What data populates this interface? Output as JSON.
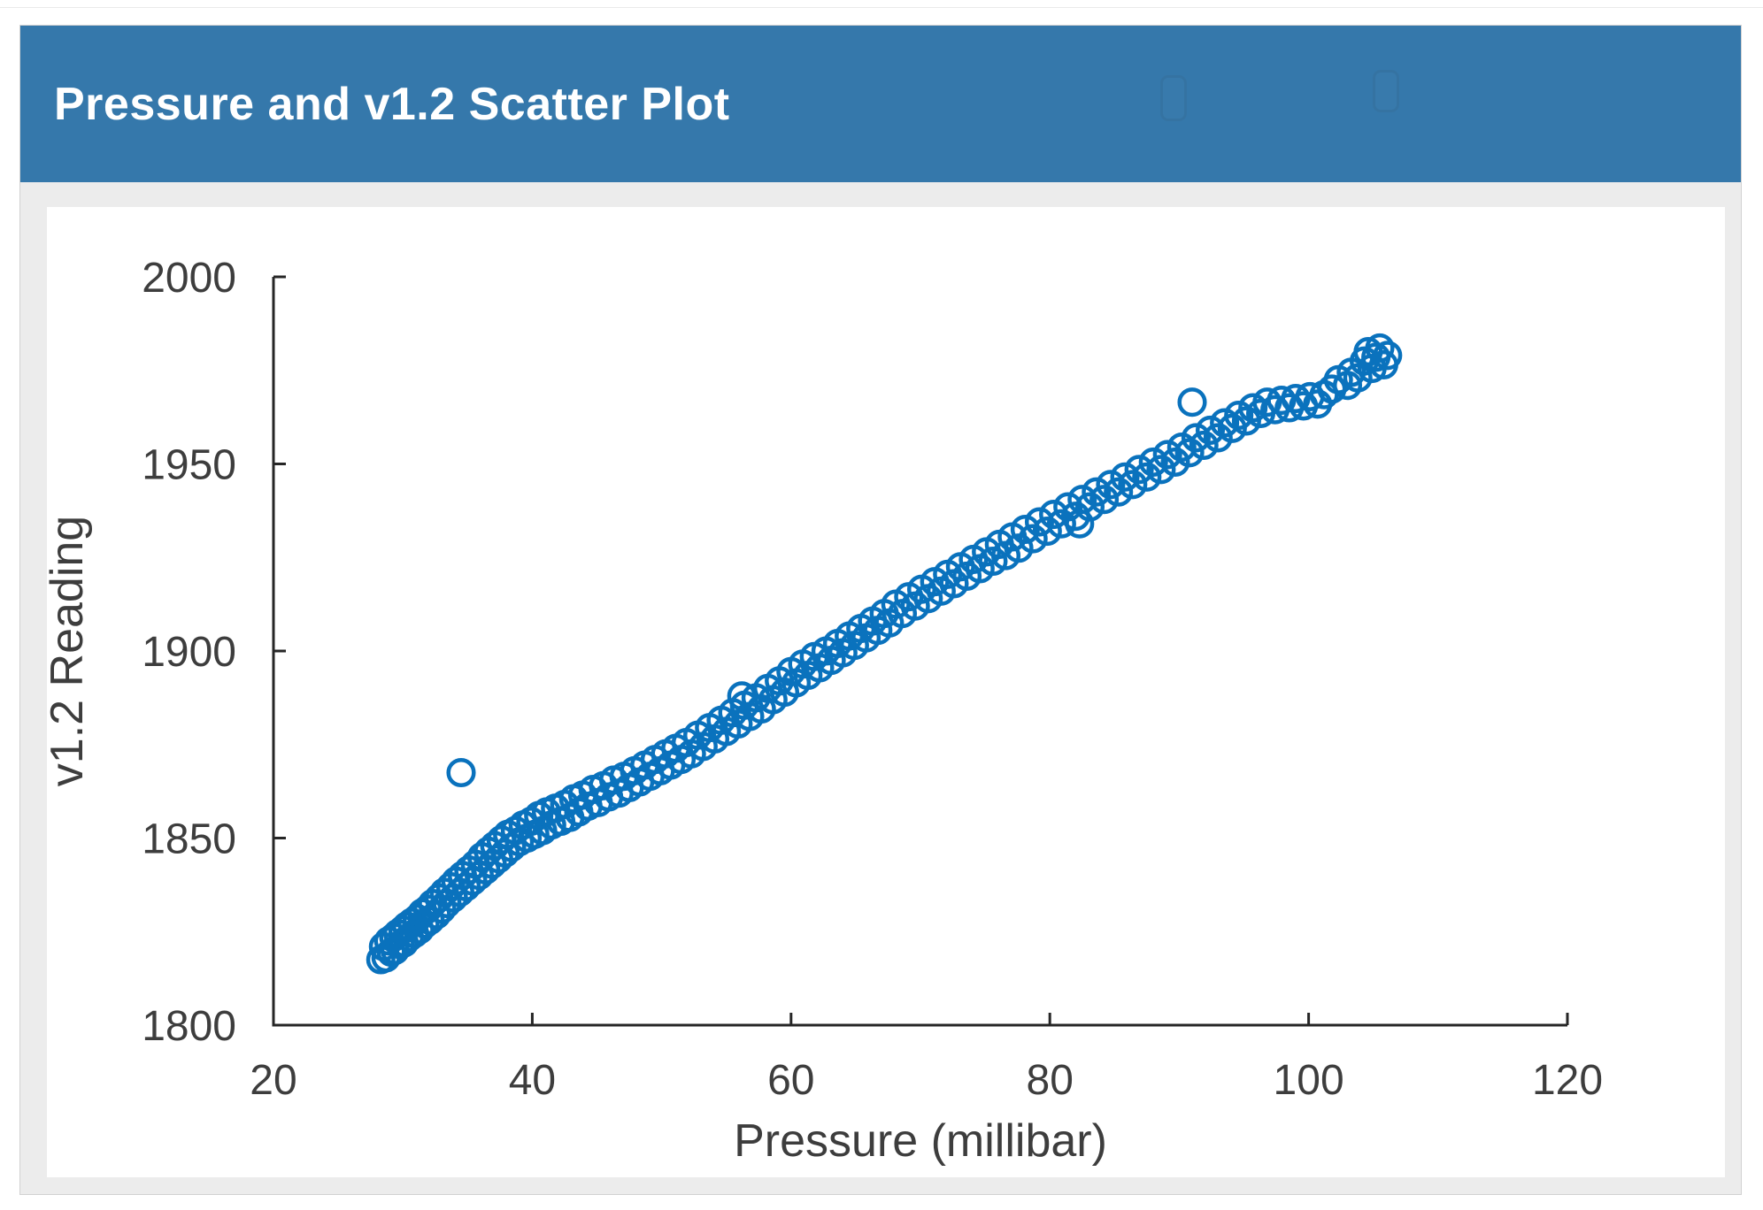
{
  "header": {
    "title": "Pressure and v1.2 Scatter Plot"
  },
  "colors": {
    "header_bg": "#3578ab",
    "header_text": "#ffffff",
    "body_bg": "#ececec",
    "card_bg": "#ffffff",
    "panel_border": "#d2d2d2",
    "axis": "#262626",
    "tick_text": "#3d3d3d",
    "marker": "#0a72bd"
  },
  "chart_data": {
    "type": "scatter",
    "title": "Pressure and v1.2 Scatter Plot",
    "xlabel": "Pressure (millibar)",
    "ylabel": "v1.2 Reading",
    "xlim": [
      20,
      120
    ],
    "ylim": [
      1800,
      2000
    ],
    "xticks": [
      20,
      40,
      60,
      80,
      100,
      120
    ],
    "yticks": [
      1800,
      1850,
      1900,
      1950,
      2000
    ],
    "grid": false,
    "legend": null,
    "marker_style": "open-circle",
    "notes": "rising band with outlier at (34.5,1867.5), high point (91,1966.5), plateau 96-101, top cluster 104-106",
    "points": [
      [
        28.3,
        1817.5
      ],
      [
        28.5,
        1821
      ],
      [
        28.7,
        1818
      ],
      [
        28.9,
        1822.5
      ],
      [
        29.1,
        1819.5
      ],
      [
        29.3,
        1823.5
      ],
      [
        29.4,
        1820
      ],
      [
        29.6,
        1824.5
      ],
      [
        29.8,
        1821.5
      ],
      [
        30,
        1825.5
      ],
      [
        30.1,
        1822
      ],
      [
        30.3,
        1826.5
      ],
      [
        30.5,
        1823.5
      ],
      [
        30.7,
        1827.5
      ],
      [
        30.9,
        1824.5
      ],
      [
        31.1,
        1828.5
      ],
      [
        31.3,
        1825.5
      ],
      [
        31.5,
        1830
      ],
      [
        31.7,
        1827
      ],
      [
        31.9,
        1831
      ],
      [
        32.1,
        1828
      ],
      [
        32.3,
        1832.5
      ],
      [
        32.6,
        1829.5
      ],
      [
        32.8,
        1834
      ],
      [
        33,
        1831
      ],
      [
        33.2,
        1835.5
      ],
      [
        33.4,
        1832.5
      ],
      [
        33.7,
        1837
      ],
      [
        33.9,
        1834
      ],
      [
        34.1,
        1838.5
      ],
      [
        34.4,
        1835.5
      ],
      [
        34.5,
        1867.5
      ],
      [
        34.6,
        1840
      ],
      [
        34.9,
        1837
      ],
      [
        35.1,
        1841.5
      ],
      [
        35.4,
        1838.5
      ],
      [
        35.6,
        1843
      ],
      [
        35.9,
        1840
      ],
      [
        36.1,
        1845
      ],
      [
        36.4,
        1841.5
      ],
      [
        36.6,
        1846.5
      ],
      [
        36.9,
        1843
      ],
      [
        37.1,
        1848
      ],
      [
        37.4,
        1844.5
      ],
      [
        37.6,
        1849.5
      ],
      [
        37.9,
        1846
      ],
      [
        38.1,
        1851
      ],
      [
        38.4,
        1847.5
      ],
      [
        38.7,
        1852
      ],
      [
        39,
        1849
      ],
      [
        39.3,
        1853.5
      ],
      [
        39.6,
        1850
      ],
      [
        39.9,
        1854.5
      ],
      [
        40.2,
        1851
      ],
      [
        40.5,
        1856
      ],
      [
        40.8,
        1852
      ],
      [
        41.1,
        1857
      ],
      [
        41.5,
        1853.5
      ],
      [
        41.8,
        1858
      ],
      [
        42.2,
        1854.5
      ],
      [
        42.5,
        1859
      ],
      [
        42.9,
        1855.5
      ],
      [
        43.2,
        1860.5
      ],
      [
        43.6,
        1857
      ],
      [
        43.9,
        1861.5
      ],
      [
        44.3,
        1858.5
      ],
      [
        44.7,
        1863
      ],
      [
        45.1,
        1859.5
      ],
      [
        45.5,
        1864
      ],
      [
        45.9,
        1861
      ],
      [
        46.3,
        1865.5
      ],
      [
        46.7,
        1862
      ],
      [
        47.1,
        1866.5
      ],
      [
        47.5,
        1863.5
      ],
      [
        47.9,
        1868
      ],
      [
        48.3,
        1865
      ],
      [
        48.7,
        1869.5
      ],
      [
        49.1,
        1866.5
      ],
      [
        49.5,
        1871
      ],
      [
        49.9,
        1868
      ],
      [
        50.3,
        1872.5
      ],
      [
        50.7,
        1869.5
      ],
      [
        51.1,
        1874
      ],
      [
        51.5,
        1871
      ],
      [
        51.9,
        1875.5
      ],
      [
        52.3,
        1872.5
      ],
      [
        52.8,
        1877.5
      ],
      [
        53.2,
        1874.5
      ],
      [
        53.7,
        1879.5
      ],
      [
        54.1,
        1876.5
      ],
      [
        54.6,
        1881.5
      ],
      [
        55,
        1878.5
      ],
      [
        55.5,
        1883.5
      ],
      [
        55.9,
        1880.5
      ],
      [
        56.2,
        1888
      ],
      [
        56.4,
        1885.5
      ],
      [
        56.8,
        1882.5
      ],
      [
        57.3,
        1887.5
      ],
      [
        57.7,
        1884.5
      ],
      [
        58.2,
        1890
      ],
      [
        58.6,
        1887
      ],
      [
        59.1,
        1892
      ],
      [
        59.5,
        1889
      ],
      [
        60,
        1894.5
      ],
      [
        60.4,
        1891.5
      ],
      [
        60.9,
        1896.5
      ],
      [
        61.3,
        1893.5
      ],
      [
        61.8,
        1898.5
      ],
      [
        62.2,
        1895.5
      ],
      [
        62.7,
        1900
      ],
      [
        63.1,
        1897.5
      ],
      [
        63.6,
        1902
      ],
      [
        64,
        1899.5
      ],
      [
        64.5,
        1904
      ],
      [
        64.9,
        1901.5
      ],
      [
        65.4,
        1906
      ],
      [
        65.8,
        1903.5
      ],
      [
        66.3,
        1908
      ],
      [
        66.7,
        1905.5
      ],
      [
        67.2,
        1910
      ],
      [
        67.6,
        1907.5
      ],
      [
        68.1,
        1912.5
      ],
      [
        68.6,
        1910
      ],
      [
        69.1,
        1914.5
      ],
      [
        69.6,
        1912
      ],
      [
        70.1,
        1916.5
      ],
      [
        70.6,
        1914
      ],
      [
        71.1,
        1918.5
      ],
      [
        71.6,
        1916
      ],
      [
        72.1,
        1920.5
      ],
      [
        72.6,
        1918
      ],
      [
        73.1,
        1922.5
      ],
      [
        73.6,
        1920
      ],
      [
        74.1,
        1924.5
      ],
      [
        74.6,
        1922
      ],
      [
        75.1,
        1926.5
      ],
      [
        75.6,
        1924
      ],
      [
        76.1,
        1928.5
      ],
      [
        76.6,
        1925.5
      ],
      [
        77.1,
        1930.5
      ],
      [
        77.6,
        1927.5
      ],
      [
        78.1,
        1932.5
      ],
      [
        78.7,
        1930
      ],
      [
        79.2,
        1934.5
      ],
      [
        79.8,
        1932
      ],
      [
        80.3,
        1936.5
      ],
      [
        80.9,
        1934
      ],
      [
        81.4,
        1938.5
      ],
      [
        82,
        1936
      ],
      [
        82.3,
        1934
      ],
      [
        82.5,
        1940.5
      ],
      [
        83.1,
        1938.5
      ],
      [
        83.6,
        1942.5
      ],
      [
        84.2,
        1940.5
      ],
      [
        84.7,
        1944.5
      ],
      [
        85.3,
        1942.5
      ],
      [
        85.8,
        1946.5
      ],
      [
        86.4,
        1944.5
      ],
      [
        86.9,
        1948.5
      ],
      [
        87.5,
        1946.5
      ],
      [
        88,
        1950.5
      ],
      [
        88.6,
        1948.5
      ],
      [
        89.1,
        1952.5
      ],
      [
        89.7,
        1950.5
      ],
      [
        90.2,
        1954.5
      ],
      [
        90.8,
        1953
      ],
      [
        91,
        1966.5
      ],
      [
        91.3,
        1957
      ],
      [
        91.9,
        1955
      ],
      [
        92.4,
        1959
      ],
      [
        93,
        1957
      ],
      [
        93.5,
        1961
      ],
      [
        94.1,
        1959.5
      ],
      [
        94.6,
        1963
      ],
      [
        95.2,
        1961.5
      ],
      [
        95.7,
        1965
      ],
      [
        96.3,
        1963.5
      ],
      [
        96.8,
        1966.5
      ],
      [
        97.4,
        1964.5
      ],
      [
        97.9,
        1967
      ],
      [
        98.5,
        1965
      ],
      [
        99,
        1967.5
      ],
      [
        99.6,
        1965.5
      ],
      [
        100.1,
        1968
      ],
      [
        100.7,
        1966
      ],
      [
        101.2,
        1968.5
      ],
      [
        101.8,
        1970
      ],
      [
        102.3,
        1972.5
      ],
      [
        103,
        1971
      ],
      [
        103.3,
        1974.5
      ],
      [
        103.8,
        1973
      ],
      [
        104.3,
        1977.5
      ],
      [
        104.6,
        1980
      ],
      [
        104.9,
        1975.5
      ],
      [
        105.2,
        1978.5
      ],
      [
        105.5,
        1981
      ],
      [
        105.8,
        1976.5
      ],
      [
        106.1,
        1979
      ]
    ]
  }
}
